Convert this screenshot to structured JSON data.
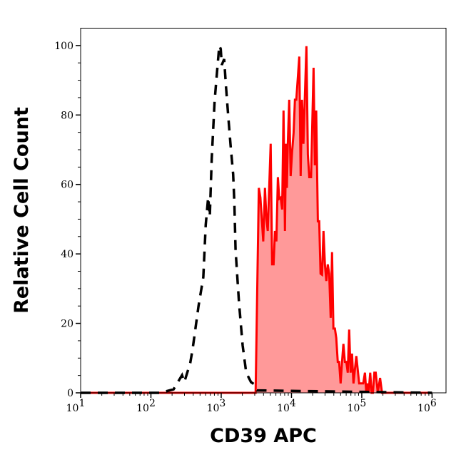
{
  "chart_data": {
    "type": "area",
    "title": "",
    "xlabel": "CD39 APC",
    "ylabel": "Relative Cell Count",
    "x_scale": "log",
    "xlim": [
      10,
      1580000
    ],
    "ylim": [
      0,
      105
    ],
    "grid": false,
    "x_ticks": [
      {
        "value": 10,
        "base": "10",
        "exp": "1"
      },
      {
        "value": 100,
        "base": "10",
        "exp": "2"
      },
      {
        "value": 1000,
        "base": "10",
        "exp": "3"
      },
      {
        "value": 10000,
        "base": "10",
        "exp": "4"
      },
      {
        "value": 100000,
        "base": "10",
        "exp": "5"
      },
      {
        "value": 1000000,
        "base": "10",
        "exp": "6"
      }
    ],
    "y_ticks": [
      {
        "value": 0,
        "label": "0"
      },
      {
        "value": 20,
        "label": "20"
      },
      {
        "value": 40,
        "label": "40"
      },
      {
        "value": 60,
        "label": "60"
      },
      {
        "value": 80,
        "label": "80"
      },
      {
        "value": 100,
        "label": "100"
      }
    ],
    "series": [
      {
        "style": "dashed-line",
        "color": "#000000",
        "x": [
          10,
          132,
          154,
          210,
          277,
          299,
          363,
          393,
          476,
          557,
          603,
          652,
          689,
          733,
          805,
          869,
          940,
          984,
          1020,
          1100,
          1170,
          1260,
          1360,
          1480,
          1540,
          1600,
          1790,
          2020,
          2270,
          2650,
          2980,
          3220,
          1000000
        ],
        "y": [
          0,
          0,
          0.3,
          1.0,
          5.1,
          3.1,
          8.6,
          12.7,
          25.0,
          33.3,
          48.4,
          56.3,
          50.8,
          67.5,
          83.9,
          92.1,
          100,
          99.0,
          94.4,
          96.1,
          88.1,
          79.5,
          71.3,
          63.0,
          54.8,
          41.1,
          26.0,
          13.7,
          5.8,
          3.1,
          2.4,
          0.7,
          0
        ]
      },
      {
        "style": "filled",
        "color": "#ff0000",
        "fill": "#ff9999",
        "x": [
          10,
          3090,
          3430,
          3610,
          3970,
          4190,
          4400,
          4600,
          5060,
          5300,
          5560,
          5820,
          6100,
          6400,
          6700,
          7010,
          7360,
          7710,
          8070,
          8340,
          8590,
          8870,
          9290,
          9730,
          10200,
          10700,
          11200,
          11700,
          12900,
          13500,
          14100,
          14800,
          16300,
          17100,
          17900,
          19000,
          20600,
          21500,
          22500,
          23700,
          24800,
          25900,
          27200,
          28500,
          29900,
          31300,
          32800,
          34400,
          36100,
          37800,
          39500,
          41500,
          43400,
          45500,
          47600,
          50000,
          52400,
          54800,
          57500,
          60300,
          63100,
          66200,
          69300,
          72600,
          76200,
          83600,
          91800,
          105000,
          111000,
          116000,
          121000,
          125000,
          132000,
          138000,
          144000,
          151000,
          158000,
          169000,
          182000,
          194000,
          1000000
        ],
        "y": [
          0,
          0,
          59.0,
          56.2,
          43.6,
          59.0,
          50.1,
          46.6,
          71.7,
          37.0,
          37.0,
          46.6,
          43.6,
          62.1,
          55.9,
          56.2,
          52.8,
          81.3,
          46.6,
          71.7,
          59.0,
          71.7,
          84.4,
          62.4,
          69.3,
          74.8,
          84.4,
          84.4,
          96.8,
          62.4,
          84.4,
          71.7,
          99.8,
          68.6,
          62.1,
          62.1,
          93.6,
          65.5,
          81.3,
          49.4,
          49.4,
          34.3,
          34.0,
          46.6,
          37.0,
          32.2,
          37.0,
          34.3,
          21.6,
          40.5,
          18.5,
          18.5,
          15.8,
          8.9,
          8.9,
          2.7,
          8.9,
          14.1,
          8.9,
          8.9,
          5.8,
          18.2,
          5.8,
          11.3,
          2.7,
          10.6,
          2.7,
          2.7,
          5.8,
          0,
          2.7,
          0,
          5.8,
          0,
          0,
          5.8,
          5.8,
          0,
          4.3,
          0,
          0
        ]
      }
    ]
  }
}
